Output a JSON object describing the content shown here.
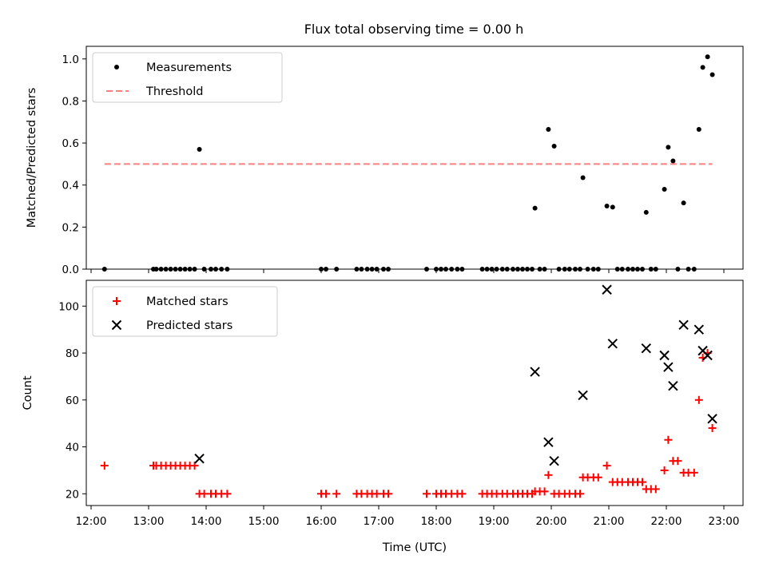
{
  "figure": {
    "title": "Flux total observing time = 0.00 h"
  },
  "chart_data": [
    {
      "type": "scatter",
      "title": "Flux total observing time = 0.00 h",
      "xlabel": "",
      "ylabel": "Matched/Predicted stars",
      "xlim": [
        "11:55",
        "23:20"
      ],
      "ylim": [
        0,
        1.06
      ],
      "yticks": [
        0.0,
        0.2,
        0.4,
        0.6,
        0.8,
        1.0
      ],
      "ytick_labels": [
        "0.0",
        "0.2",
        "0.4",
        "0.6",
        "0.8",
        "1.0"
      ],
      "legend_position": "upper left",
      "series": [
        {
          "name": "Measurements",
          "marker": "dot",
          "color": "#000000",
          "points": [
            [
              "12:14",
              0
            ],
            [
              "13:05",
              0
            ],
            [
              "13:08",
              0
            ],
            [
              "13:13",
              0
            ],
            [
              "13:18",
              0
            ],
            [
              "13:23",
              0
            ],
            [
              "13:28",
              0
            ],
            [
              "13:33",
              0
            ],
            [
              "13:38",
              0
            ],
            [
              "13:43",
              0
            ],
            [
              "13:48",
              0
            ],
            [
              "13:53",
              0.57
            ],
            [
              "13:58",
              0
            ],
            [
              "14:05",
              0
            ],
            [
              "14:10",
              0
            ],
            [
              "14:16",
              0
            ],
            [
              "14:22",
              0
            ],
            [
              "16:00",
              0
            ],
            [
              "16:05",
              0
            ],
            [
              "16:16",
              0
            ],
            [
              "16:37",
              0
            ],
            [
              "16:42",
              0
            ],
            [
              "16:48",
              0
            ],
            [
              "16:53",
              0
            ],
            [
              "16:58",
              0
            ],
            [
              "17:05",
              0
            ],
            [
              "17:10",
              0
            ],
            [
              "17:50",
              0
            ],
            [
              "18:00",
              0
            ],
            [
              "18:05",
              0
            ],
            [
              "18:10",
              0
            ],
            [
              "18:16",
              0
            ],
            [
              "18:22",
              0
            ],
            [
              "18:27",
              0
            ],
            [
              "18:48",
              0
            ],
            [
              "18:53",
              0
            ],
            [
              "18:58",
              0
            ],
            [
              "19:03",
              0
            ],
            [
              "19:09",
              0
            ],
            [
              "19:14",
              0
            ],
            [
              "19:20",
              0
            ],
            [
              "19:25",
              0
            ],
            [
              "19:30",
              0
            ],
            [
              "19:35",
              0
            ],
            [
              "19:40",
              0
            ],
            [
              "19:43",
              0.29
            ],
            [
              "19:48",
              0
            ],
            [
              "19:53",
              0
            ],
            [
              "19:57",
              0.665
            ],
            [
              "20:03",
              0.585
            ],
            [
              "20:08",
              0
            ],
            [
              "20:14",
              0
            ],
            [
              "20:19",
              0
            ],
            [
              "20:25",
              0
            ],
            [
              "20:30",
              0
            ],
            [
              "20:33",
              0.435
            ],
            [
              "20:38",
              0
            ],
            [
              "20:44",
              0
            ],
            [
              "20:49",
              0
            ],
            [
              "20:58",
              0.3
            ],
            [
              "21:04",
              0.295
            ],
            [
              "21:09",
              0
            ],
            [
              "21:14",
              0
            ],
            [
              "21:20",
              0
            ],
            [
              "21:25",
              0
            ],
            [
              "21:30",
              0
            ],
            [
              "21:35",
              0
            ],
            [
              "21:39",
              0.27
            ],
            [
              "21:44",
              0
            ],
            [
              "21:49",
              0
            ],
            [
              "21:58",
              0.38
            ],
            [
              "22:02",
              0.58
            ],
            [
              "22:07",
              0.515
            ],
            [
              "22:12",
              0
            ],
            [
              "22:18",
              0.315
            ],
            [
              "22:23",
              0
            ],
            [
              "22:29",
              0
            ],
            [
              "22:34",
              0.665
            ],
            [
              "22:38",
              0.96
            ],
            [
              "22:43",
              1.01
            ],
            [
              "22:48",
              0.925
            ]
          ]
        },
        {
          "name": "Threshold",
          "marker": "dashed-line",
          "color": "#ff7f7f",
          "points": [
            [
              "12:14",
              0.5
            ],
            [
              "22:48",
              0.5
            ]
          ]
        }
      ]
    },
    {
      "type": "scatter",
      "title": "",
      "xlabel": "Time (UTC)",
      "ylabel": "Count",
      "xlim": [
        "11:55",
        "23:20"
      ],
      "ylim": [
        15,
        111
      ],
      "yticks": [
        20,
        40,
        60,
        80,
        100
      ],
      "ytick_labels": [
        "20",
        "40",
        "60",
        "80",
        "100"
      ],
      "xticks": [
        "12:00",
        "13:00",
        "14:00",
        "15:00",
        "16:00",
        "17:00",
        "18:00",
        "19:00",
        "20:00",
        "21:00",
        "22:00",
        "23:00"
      ],
      "legend_position": "upper left",
      "series": [
        {
          "name": "Matched stars",
          "marker": "plus",
          "color": "#ff0000",
          "points": [
            [
              "12:14",
              32
            ],
            [
              "13:05",
              32
            ],
            [
              "13:08",
              32
            ],
            [
              "13:13",
              32
            ],
            [
              "13:18",
              32
            ],
            [
              "13:23",
              32
            ],
            [
              "13:28",
              32
            ],
            [
              "13:33",
              32
            ],
            [
              "13:38",
              32
            ],
            [
              "13:43",
              32
            ],
            [
              "13:48",
              32
            ],
            [
              "13:53",
              20
            ],
            [
              "13:58",
              20
            ],
            [
              "14:05",
              20
            ],
            [
              "14:10",
              20
            ],
            [
              "14:16",
              20
            ],
            [
              "14:22",
              20
            ],
            [
              "16:00",
              20
            ],
            [
              "16:05",
              20
            ],
            [
              "16:16",
              20
            ],
            [
              "16:37",
              20
            ],
            [
              "16:42",
              20
            ],
            [
              "16:48",
              20
            ],
            [
              "16:53",
              20
            ],
            [
              "16:58",
              20
            ],
            [
              "17:05",
              20
            ],
            [
              "17:10",
              20
            ],
            [
              "17:50",
              20
            ],
            [
              "18:00",
              20
            ],
            [
              "18:05",
              20
            ],
            [
              "18:10",
              20
            ],
            [
              "18:16",
              20
            ],
            [
              "18:22",
              20
            ],
            [
              "18:27",
              20
            ],
            [
              "18:48",
              20
            ],
            [
              "18:53",
              20
            ],
            [
              "18:58",
              20
            ],
            [
              "19:03",
              20
            ],
            [
              "19:09",
              20
            ],
            [
              "19:14",
              20
            ],
            [
              "19:20",
              20
            ],
            [
              "19:25",
              20
            ],
            [
              "19:30",
              20
            ],
            [
              "19:35",
              20
            ],
            [
              "19:40",
              20
            ],
            [
              "19:43",
              21
            ],
            [
              "19:48",
              21
            ],
            [
              "19:53",
              21
            ],
            [
              "19:57",
              28
            ],
            [
              "20:03",
              20
            ],
            [
              "20:08",
              20
            ],
            [
              "20:14",
              20
            ],
            [
              "20:19",
              20
            ],
            [
              "20:25",
              20
            ],
            [
              "20:30",
              20
            ],
            [
              "20:33",
              27
            ],
            [
              "20:38",
              27
            ],
            [
              "20:44",
              27
            ],
            [
              "20:49",
              27
            ],
            [
              "20:58",
              32
            ],
            [
              "21:04",
              25
            ],
            [
              "21:09",
              25
            ],
            [
              "21:14",
              25
            ],
            [
              "21:20",
              25
            ],
            [
              "21:25",
              25
            ],
            [
              "21:30",
              25
            ],
            [
              "21:35",
              25
            ],
            [
              "21:39",
              22
            ],
            [
              "21:44",
              22
            ],
            [
              "21:49",
              22
            ],
            [
              "21:58",
              30
            ],
            [
              "22:02",
              43
            ],
            [
              "22:07",
              34
            ],
            [
              "22:12",
              34
            ],
            [
              "22:18",
              29
            ],
            [
              "22:23",
              29
            ],
            [
              "22:29",
              29
            ],
            [
              "22:34",
              60
            ],
            [
              "22:38",
              78
            ],
            [
              "22:43",
              80
            ],
            [
              "22:48",
              48
            ]
          ]
        },
        {
          "name": "Predicted stars",
          "marker": "x",
          "color": "#000000",
          "points": [
            [
              "13:53",
              35
            ],
            [
              "19:43",
              72
            ],
            [
              "19:57",
              42
            ],
            [
              "20:03",
              34
            ],
            [
              "20:33",
              62
            ],
            [
              "20:58",
              107
            ],
            [
              "21:04",
              84
            ],
            [
              "21:39",
              82
            ],
            [
              "21:58",
              79
            ],
            [
              "22:02",
              74
            ],
            [
              "22:07",
              66
            ],
            [
              "22:18",
              92
            ],
            [
              "22:34",
              90
            ],
            [
              "22:38",
              81
            ],
            [
              "22:43",
              79
            ],
            [
              "22:48",
              52
            ]
          ]
        }
      ]
    }
  ]
}
